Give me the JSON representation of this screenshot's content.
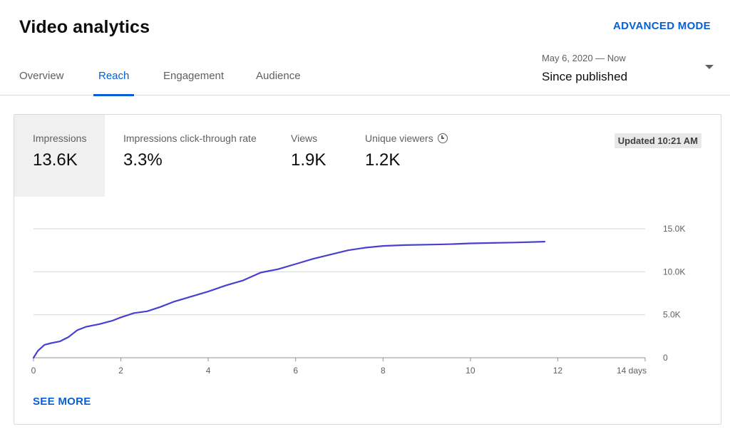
{
  "header": {
    "title": "Video analytics",
    "advanced_mode": "ADVANCED MODE"
  },
  "tabs": [
    {
      "label": "Overview"
    },
    {
      "label": "Reach"
    },
    {
      "label": "Engagement"
    },
    {
      "label": "Audience"
    }
  ],
  "active_tab": "Reach",
  "date_range": {
    "range_text": "May 6, 2020 — Now",
    "selected": "Since published"
  },
  "metrics": [
    {
      "label": "Impressions",
      "value": "13.6K"
    },
    {
      "label": "Impressions click-through rate",
      "value": "3.3%"
    },
    {
      "label": "Views",
      "value": "1.9K"
    },
    {
      "label": "Unique viewers",
      "value": "1.2K"
    }
  ],
  "updated_badge": "Updated 10:21 AM",
  "see_more": "SEE MORE",
  "colors": {
    "accent": "#065fd4",
    "line": "#4a3fd0",
    "active_metric_bg": "#f0f0f0"
  },
  "chart_data": {
    "type": "line",
    "series": [
      {
        "name": "Impressions",
        "x": [
          0,
          0.1,
          0.25,
          0.4,
          0.6,
          0.8,
          1.0,
          1.2,
          1.5,
          1.8,
          2.0,
          2.3,
          2.6,
          2.9,
          3.2,
          3.6,
          4.0,
          4.4,
          4.8,
          5.2,
          5.6,
          6.0,
          6.4,
          6.8,
          7.2,
          7.6,
          8.0,
          8.5,
          9.0,
          9.5,
          10.0,
          10.5,
          11.0,
          11.7
        ],
        "y": [
          0,
          800,
          1500,
          1700,
          1900,
          2400,
          3200,
          3600,
          3900,
          4300,
          4700,
          5200,
          5400,
          5900,
          6500,
          7100,
          7700,
          8400,
          9000,
          9900,
          10300,
          10900,
          11500,
          12000,
          12500,
          12800,
          13000,
          13100,
          13150,
          13200,
          13300,
          13350,
          13400,
          13500
        ]
      }
    ],
    "xlim": [
      0,
      14
    ],
    "ylim": [
      0,
      15000
    ],
    "x_ticks": [
      "0",
      "2",
      "4",
      "6",
      "8",
      "10",
      "12",
      "14 days"
    ],
    "x_tick_values": [
      0,
      2,
      4,
      6,
      8,
      10,
      12,
      14
    ],
    "y_ticks": [
      "0",
      "5.0K",
      "10.0K",
      "15.0K"
    ],
    "y_tick_values": [
      0,
      5000,
      10000,
      15000
    ],
    "grid": true,
    "y_axis_side": "right"
  }
}
